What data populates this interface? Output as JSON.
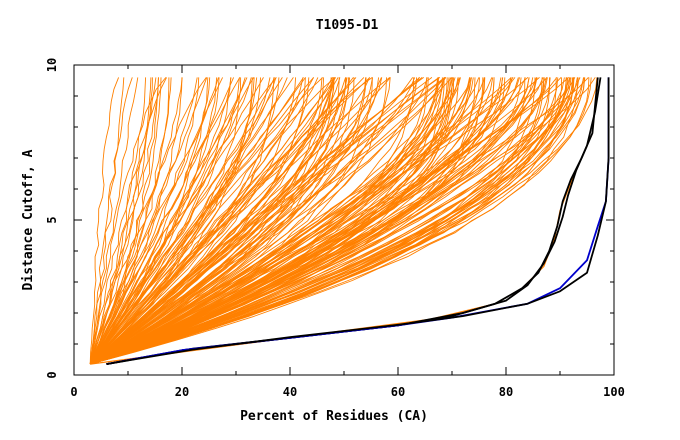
{
  "chart_data": {
    "type": "line",
    "title": "T1095-D1",
    "xlabel": "Percent of Residues (CA)",
    "ylabel": "Distance Cutoff, A",
    "xlim": [
      0,
      100
    ],
    "ylim": [
      0,
      10
    ],
    "x_ticks": [
      0,
      20,
      40,
      60,
      80,
      100
    ],
    "y_ticks": [
      0,
      5,
      10
    ],
    "grid": false,
    "legend": "none",
    "colors": {
      "background_models": "#ff8000",
      "highlight_black": "#000000",
      "highlight_blue": "#0000cc",
      "axis": "#000000"
    },
    "background_family": {
      "count": 220,
      "start": [
        3,
        0.35
      ],
      "end_y": 9.6,
      "end_x_range": [
        8,
        97
      ]
    },
    "series": [
      {
        "color": "#ff8000",
        "points": [
          [
            3,
            0.35
          ],
          [
            40,
            1.2
          ],
          [
            66,
            1.8
          ],
          [
            78,
            2.3
          ],
          [
            83,
            2.8
          ],
          [
            87,
            3.5
          ],
          [
            89,
            4.4
          ],
          [
            90,
            5.3
          ],
          [
            92,
            6.2
          ],
          [
            94,
            7.0
          ],
          [
            96,
            7.8
          ],
          [
            97,
            9.6
          ]
        ]
      },
      {
        "color": "#000000",
        "points": [
          [
            6,
            0.35
          ],
          [
            20,
            0.8
          ],
          [
            40,
            1.2
          ],
          [
            60,
            1.6
          ],
          [
            70,
            1.9
          ],
          [
            78,
            2.3
          ],
          [
            83,
            2.8
          ],
          [
            86,
            3.3
          ],
          [
            88,
            4.0
          ],
          [
            89.5,
            4.8
          ],
          [
            90.5,
            5.6
          ],
          [
            92,
            6.3
          ],
          [
            94,
            7.0
          ],
          [
            96,
            7.8
          ],
          [
            97,
            9.6
          ]
        ]
      },
      {
        "color": "#000000",
        "points": [
          [
            6,
            0.35
          ],
          [
            22,
            0.85
          ],
          [
            40,
            1.2
          ],
          [
            60,
            1.6
          ],
          [
            72,
            2.0
          ],
          [
            80,
            2.4
          ],
          [
            84,
            2.9
          ],
          [
            87,
            3.6
          ],
          [
            89,
            4.3
          ],
          [
            90.5,
            5.1
          ],
          [
            91.5,
            5.8
          ],
          [
            93,
            6.6
          ],
          [
            95,
            7.4
          ],
          [
            96.5,
            8.5
          ],
          [
            97.5,
            9.6
          ]
        ]
      },
      {
        "color": "#0000cc",
        "points": [
          [
            6,
            0.35
          ],
          [
            20,
            0.8
          ],
          [
            40,
            1.2
          ],
          [
            60,
            1.6
          ],
          [
            70,
            1.85
          ],
          [
            84,
            2.3
          ],
          [
            90,
            2.8
          ],
          [
            95,
            3.7
          ],
          [
            97,
            4.8
          ],
          [
            98.5,
            5.6
          ],
          [
            99,
            7.0
          ],
          [
            99,
            9.6
          ]
        ]
      },
      {
        "color": "#000000",
        "points": [
          [
            6,
            0.35
          ],
          [
            22,
            0.82
          ],
          [
            40,
            1.22
          ],
          [
            60,
            1.62
          ],
          [
            72,
            1.9
          ],
          [
            84,
            2.3
          ],
          [
            90,
            2.7
          ],
          [
            95,
            3.3
          ],
          [
            97,
            4.5
          ],
          [
            98.5,
            5.6
          ],
          [
            99,
            7.0
          ],
          [
            99,
            9.6
          ]
        ]
      }
    ]
  }
}
